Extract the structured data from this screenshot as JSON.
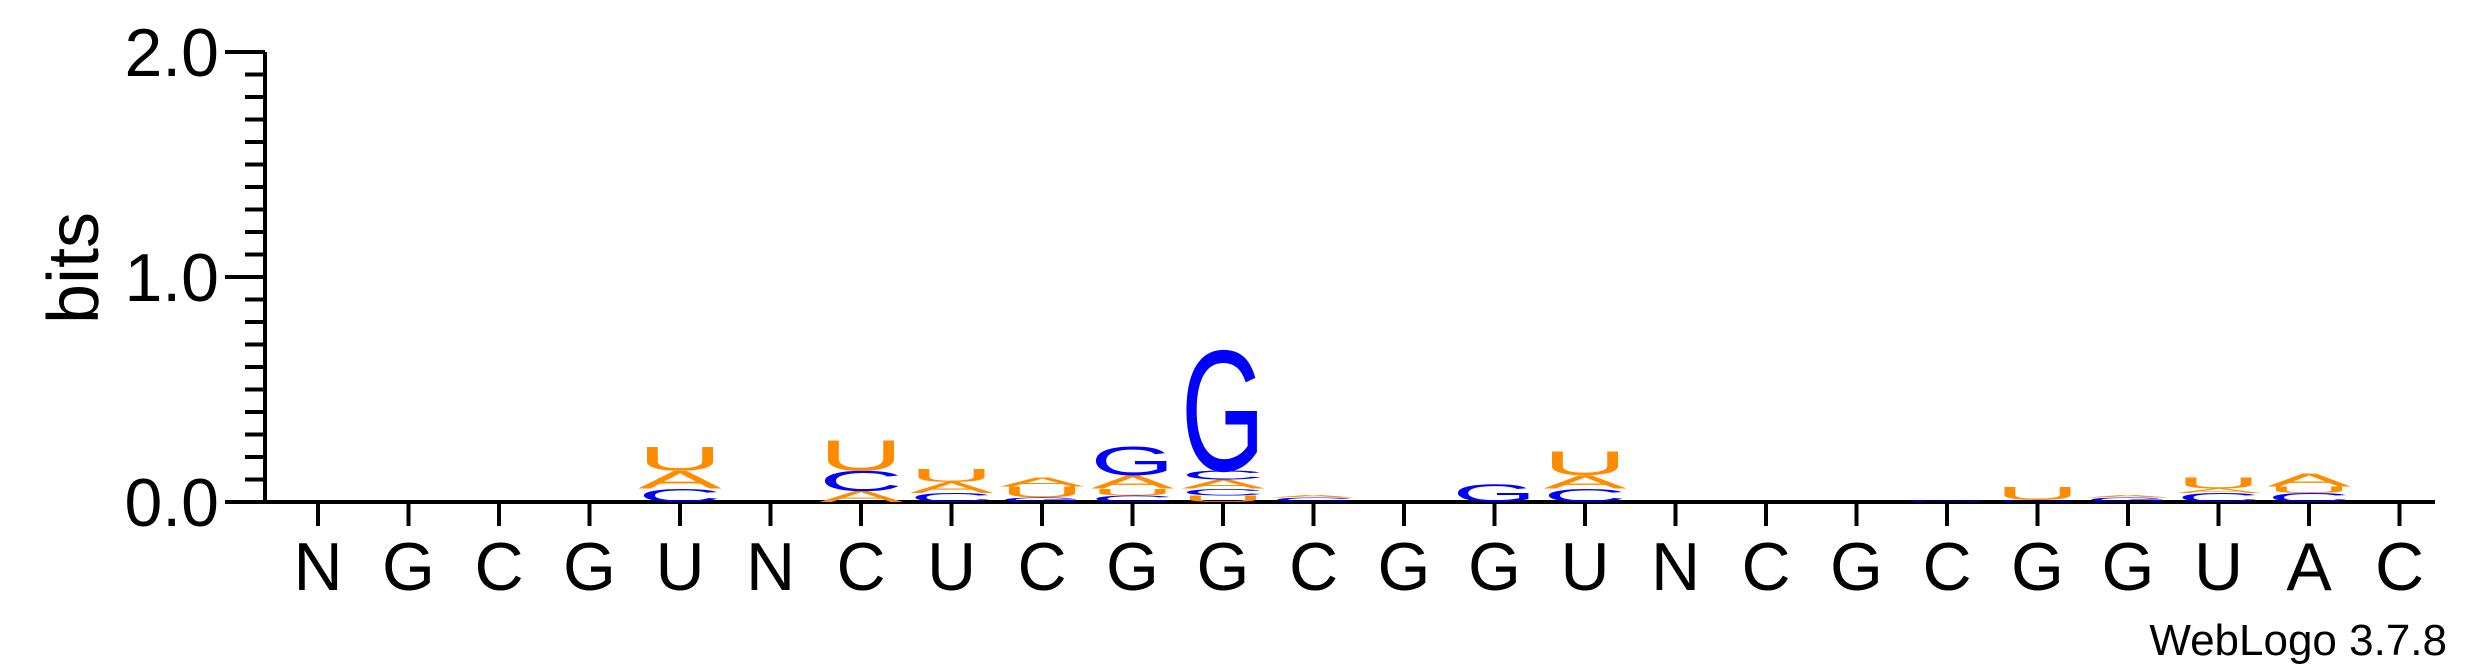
{
  "chart_data": {
    "type": "sequence-logo",
    "ylabel": "bits",
    "ylim": [
      0,
      2.0
    ],
    "yticks": [
      {
        "value": 0.0,
        "label": "0.0"
      },
      {
        "value": 1.0,
        "label": "1.0"
      },
      {
        "value": 2.0,
        "label": "2.0"
      }
    ],
    "categories": [
      "N",
      "G",
      "C",
      "G",
      "U",
      "N",
      "C",
      "U",
      "C",
      "G",
      "G",
      "C",
      "G",
      "G",
      "U",
      "N",
      "C",
      "G",
      "C",
      "G",
      "G",
      "U",
      "A",
      "C"
    ],
    "colors": {
      "U": "#ff8c00",
      "A": "#ff8c00",
      "G": "#0000ff",
      "C": "#0000ff"
    },
    "stacks": [
      [],
      [],
      [],
      [],
      [
        {
          "letter": "C",
          "bits": 0.06
        },
        {
          "letter": "A",
          "bits": 0.08
        },
        {
          "letter": "U",
          "bits": 0.11
        }
      ],
      [],
      [
        {
          "letter": "A",
          "bits": 0.05
        },
        {
          "letter": "C",
          "bits": 0.09
        },
        {
          "letter": "U",
          "bits": 0.14
        }
      ],
      [
        {
          "letter": "C",
          "bits": 0.04
        },
        {
          "letter": "A",
          "bits": 0.05
        },
        {
          "letter": "U",
          "bits": 0.06
        }
      ],
      [
        {
          "letter": "G",
          "bits": 0.02
        },
        {
          "letter": "U",
          "bits": 0.05
        },
        {
          "letter": "A",
          "bits": 0.04
        }
      ],
      [
        {
          "letter": "C",
          "bits": 0.03
        },
        {
          "letter": "U",
          "bits": 0.03
        },
        {
          "letter": "A",
          "bits": 0.06
        },
        {
          "letter": "G",
          "bits": 0.13
        }
      ],
      [
        {
          "letter": "U",
          "bits": 0.03
        },
        {
          "letter": "C",
          "bits": 0.03
        },
        {
          "letter": "A",
          "bits": 0.04
        },
        {
          "letter": "C",
          "bits": 0.04
        },
        {
          "letter": "G",
          "bits": 0.55
        }
      ],
      [
        {
          "letter": "C",
          "bits": 0.02
        },
        {
          "letter": "A",
          "bits": 0.01
        }
      ],
      [],
      [
        {
          "letter": "G",
          "bits": 0.08
        }
      ],
      [
        {
          "letter": "C",
          "bits": 0.06
        },
        {
          "letter": "A",
          "bits": 0.06
        },
        {
          "letter": "U",
          "bits": 0.11
        }
      ],
      [],
      [],
      [],
      [
        {
          "letter": "G",
          "bits": 0.01
        }
      ],
      [
        {
          "letter": "G",
          "bits": 0.01
        },
        {
          "letter": "U",
          "bits": 0.06
        }
      ],
      [
        {
          "letter": "G",
          "bits": 0.02
        },
        {
          "letter": "A",
          "bits": 0.01
        }
      ],
      [
        {
          "letter": "C",
          "bits": 0.04
        },
        {
          "letter": "A",
          "bits": 0.02
        },
        {
          "letter": "U",
          "bits": 0.05
        }
      ],
      [
        {
          "letter": "C",
          "bits": 0.04
        },
        {
          "letter": "U",
          "bits": 0.03
        },
        {
          "letter": "A",
          "bits": 0.06
        }
      ],
      []
    ]
  },
  "credit": "WebLogo 3.7.8"
}
